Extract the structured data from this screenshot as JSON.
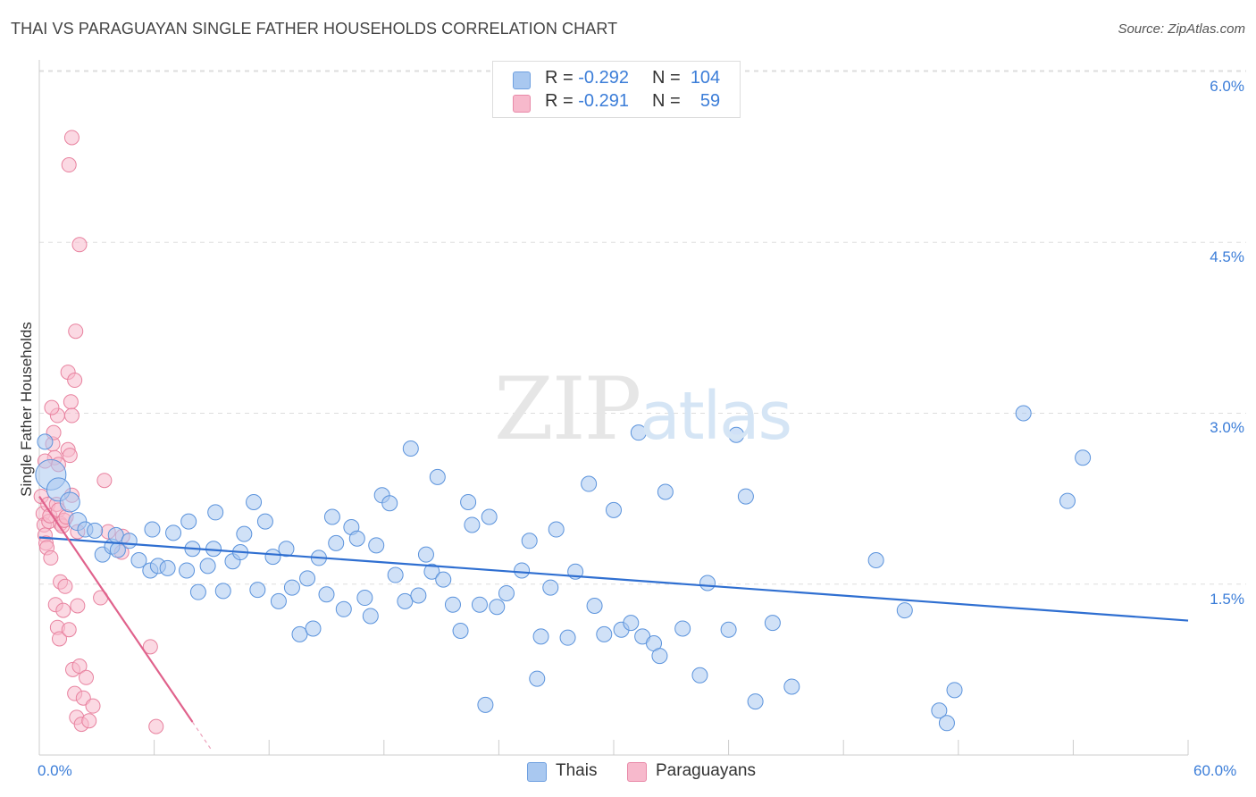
{
  "header": {
    "title": "THAI VS PARAGUAYAN SINGLE FATHER HOUSEHOLDS CORRELATION CHART",
    "source": "Source: ZipAtlas.com"
  },
  "watermark": {
    "zip": "ZIP",
    "atlas": "atlas"
  },
  "legend": {
    "rows": [
      {
        "r_label": "R =",
        "r_value": "-0.292",
        "n_label": "N =",
        "n_value": "104",
        "color": "#a9c8f0",
        "border": "#6fa0e0"
      },
      {
        "r_label": "R =",
        "r_value": "-0.291",
        "n_label": "N =",
        "n_value": "59",
        "color": "#f7b9cc",
        "border": "#e889a8"
      }
    ]
  },
  "bottom_legend": {
    "thais": "Thais",
    "paraguayans": "Paraguayans"
  },
  "colors": {
    "thai_fill": "#a9c8f0",
    "thai_stroke": "#5b93dc",
    "thai_line": "#2f6fd1",
    "para_fill": "#f7b9cc",
    "para_stroke": "#e8829f",
    "para_line": "#e0628c",
    "grid": "#dddddd",
    "tick_text": "#3b7dd8"
  },
  "chart_data": {
    "type": "scatter",
    "title": "THAI VS PARAGUAYAN SINGLE FATHER HOUSEHOLDS CORRELATION CHART",
    "xlabel": "",
    "ylabel": "Single Father Households",
    "xlim": [
      0,
      60
    ],
    "ylim": [
      0,
      6.3
    ],
    "x_tick_labels": [
      "0.0%",
      "60.0%"
    ],
    "y_ticks": [
      1.5,
      3.0,
      4.5,
      6.0
    ],
    "y_tick_labels": [
      "1.5%",
      "3.0%",
      "4.5%",
      "6.0%"
    ],
    "series": [
      {
        "name": "Thais",
        "r": -0.292,
        "n": 104,
        "trend": {
          "x": [
            0,
            60
          ],
          "y": [
            1.91,
            1.18
          ]
        },
        "points": [
          [
            0.6,
            2.46
          ],
          [
            1.0,
            2.33
          ],
          [
            1.6,
            2.22
          ],
          [
            2.0,
            2.05
          ],
          [
            2.4,
            1.98
          ],
          [
            2.9,
            1.97
          ],
          [
            3.3,
            1.76
          ],
          [
            3.8,
            1.83
          ],
          [
            4.0,
            1.93
          ],
          [
            4.7,
            1.88
          ],
          [
            4.1,
            1.8
          ],
          [
            5.2,
            1.71
          ],
          [
            5.8,
            1.62
          ],
          [
            5.9,
            1.98
          ],
          [
            6.2,
            1.66
          ],
          [
            6.7,
            1.64
          ],
          [
            7.0,
            1.95
          ],
          [
            7.7,
            1.62
          ],
          [
            7.8,
            2.05
          ],
          [
            8.0,
            1.81
          ],
          [
            8.3,
            1.43
          ],
          [
            8.8,
            1.66
          ],
          [
            9.1,
            1.81
          ],
          [
            9.2,
            2.13
          ],
          [
            9.6,
            1.44
          ],
          [
            10.1,
            1.7
          ],
          [
            10.5,
            1.78
          ],
          [
            10.7,
            1.94
          ],
          [
            11.2,
            2.22
          ],
          [
            11.4,
            1.45
          ],
          [
            11.8,
            2.05
          ],
          [
            12.2,
            1.74
          ],
          [
            12.5,
            1.35
          ],
          [
            12.9,
            1.81
          ],
          [
            13.2,
            1.47
          ],
          [
            13.6,
            1.06
          ],
          [
            14.0,
            1.55
          ],
          [
            14.3,
            1.11
          ],
          [
            14.6,
            1.73
          ],
          [
            15.0,
            1.41
          ],
          [
            15.3,
            2.09
          ],
          [
            15.5,
            1.86
          ],
          [
            15.9,
            1.28
          ],
          [
            16.3,
            2.0
          ],
          [
            16.6,
            1.9
          ],
          [
            17.0,
            1.38
          ],
          [
            17.3,
            1.22
          ],
          [
            17.6,
            1.84
          ],
          [
            17.9,
            2.28
          ],
          [
            18.3,
            2.21
          ],
          [
            18.6,
            1.58
          ],
          [
            19.1,
            1.35
          ],
          [
            19.4,
            2.69
          ],
          [
            19.8,
            1.4
          ],
          [
            20.2,
            1.76
          ],
          [
            20.5,
            1.61
          ],
          [
            20.8,
            2.44
          ],
          [
            21.1,
            1.54
          ],
          [
            21.6,
            1.32
          ],
          [
            22.0,
            1.09
          ],
          [
            22.4,
            2.22
          ],
          [
            22.6,
            2.02
          ],
          [
            23.0,
            1.32
          ],
          [
            23.5,
            2.09
          ],
          [
            23.3,
            0.44
          ],
          [
            23.9,
            1.3
          ],
          [
            24.4,
            1.42
          ],
          [
            25.2,
            1.62
          ],
          [
            25.6,
            1.88
          ],
          [
            26.0,
            0.67
          ],
          [
            26.2,
            1.04
          ],
          [
            26.7,
            1.47
          ],
          [
            27.0,
            1.98
          ],
          [
            27.6,
            1.03
          ],
          [
            28.0,
            1.61
          ],
          [
            28.7,
            2.38
          ],
          [
            29.0,
            1.31
          ],
          [
            29.5,
            1.06
          ],
          [
            30.0,
            2.15
          ],
          [
            30.4,
            1.1
          ],
          [
            30.9,
            1.16
          ],
          [
            31.3,
            2.83
          ],
          [
            31.5,
            1.04
          ],
          [
            32.1,
            0.98
          ],
          [
            32.4,
            0.87
          ],
          [
            32.7,
            2.31
          ],
          [
            33.6,
            1.11
          ],
          [
            34.5,
            0.7
          ],
          [
            34.9,
            1.51
          ],
          [
            36.0,
            1.1
          ],
          [
            36.4,
            2.81
          ],
          [
            36.9,
            2.27
          ],
          [
            37.4,
            0.47
          ],
          [
            38.3,
            1.16
          ],
          [
            39.3,
            0.6
          ],
          [
            43.7,
            1.71
          ],
          [
            45.2,
            1.27
          ],
          [
            47.0,
            0.39
          ],
          [
            47.4,
            0.28
          ],
          [
            47.8,
            0.57
          ],
          [
            51.4,
            3.0
          ],
          [
            53.7,
            2.23
          ],
          [
            54.5,
            2.61
          ],
          [
            0.3,
            2.75
          ]
        ]
      },
      {
        "name": "Paraguayans",
        "r": -0.291,
        "n": 59,
        "trend": {
          "x": [
            0,
            8.0
          ],
          "y": [
            2.27,
            0.29
          ]
        },
        "points": [
          [
            0.1,
            2.27
          ],
          [
            0.2,
            2.12
          ],
          [
            0.25,
            2.02
          ],
          [
            0.3,
            1.93
          ],
          [
            0.35,
            1.86
          ],
          [
            0.4,
            1.82
          ],
          [
            0.45,
            2.2
          ],
          [
            0.5,
            2.05
          ],
          [
            0.55,
            2.1
          ],
          [
            0.6,
            1.73
          ],
          [
            0.7,
            2.73
          ],
          [
            0.75,
            2.83
          ],
          [
            0.8,
            2.61
          ],
          [
            0.9,
            2.2
          ],
          [
            1.0,
            2.15
          ],
          [
            1.1,
            2.03
          ],
          [
            1.2,
            2.01
          ],
          [
            1.3,
            2.06
          ],
          [
            1.4,
            2.09
          ],
          [
            1.5,
            2.68
          ],
          [
            1.6,
            2.63
          ],
          [
            1.7,
            2.28
          ],
          [
            1.1,
            1.52
          ],
          [
            0.85,
            1.32
          ],
          [
            0.95,
            1.12
          ],
          [
            1.05,
            1.02
          ],
          [
            1.25,
            1.27
          ],
          [
            1.35,
            1.48
          ],
          [
            1.55,
            1.1
          ],
          [
            1.5,
            3.36
          ],
          [
            1.65,
            3.1
          ],
          [
            1.7,
            2.98
          ],
          [
            1.85,
            3.29
          ],
          [
            0.95,
            2.98
          ],
          [
            0.65,
            3.05
          ],
          [
            1.75,
            0.75
          ],
          [
            1.85,
            0.54
          ],
          [
            1.95,
            0.33
          ],
          [
            2.1,
            0.78
          ],
          [
            2.2,
            0.27
          ],
          [
            2.3,
            0.5
          ],
          [
            2.45,
            0.68
          ],
          [
            2.6,
            0.3
          ],
          [
            2.8,
            0.43
          ],
          [
            3.2,
            1.38
          ],
          [
            3.4,
            2.41
          ],
          [
            3.6,
            1.96
          ],
          [
            4.3,
            1.78
          ],
          [
            4.35,
            1.92
          ],
          [
            5.8,
            0.95
          ],
          [
            6.1,
            0.25
          ],
          [
            2.0,
            1.31
          ],
          [
            1.55,
            5.18
          ],
          [
            1.7,
            5.42
          ],
          [
            2.1,
            4.48
          ],
          [
            1.9,
            3.72
          ],
          [
            1.0,
            2.55
          ],
          [
            0.3,
            2.58
          ],
          [
            2.0,
            1.96
          ]
        ]
      }
    ]
  }
}
